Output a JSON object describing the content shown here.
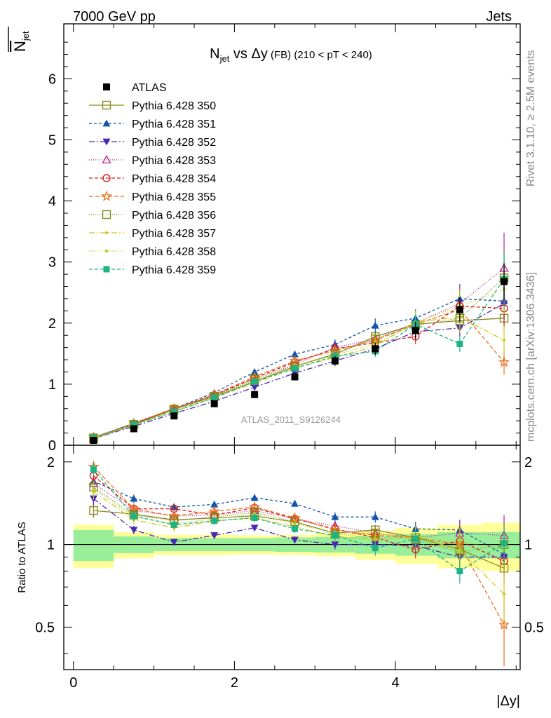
{
  "header": {
    "left": "7000 GeV pp",
    "right": "Jets"
  },
  "side_text": {
    "rivet": "Rivet 3.1.10, ≥ 2.5M events",
    "mcplots": "mcplots.cern.ch [arXiv:1306.3436]"
  },
  "watermark": "ATLAS_2011_S9126244",
  "chart_data": {
    "type": "line",
    "title": {
      "main": "N",
      "sub": "jet",
      "rest": " vs Δy",
      "small": " (FB) (210 < pT < 240)"
    },
    "ylabel": {
      "overline": "N",
      "sub": "jet"
    },
    "ratio_ylabel": "Ratio to ATLAS",
    "xlabel": "|Δy|",
    "xlim": [
      -0.12,
      5.55
    ],
    "ylim": [
      0,
      6.9
    ],
    "ratio_ylim": [
      0.35,
      2.3
    ],
    "x_ticks": [
      0,
      2,
      4
    ],
    "y_ticks": [
      0,
      1,
      2,
      3,
      4,
      5,
      6
    ],
    "ratio_ticks": [
      0.5,
      1,
      2
    ],
    "x": [
      0.25,
      0.75,
      1.25,
      1.75,
      2.25,
      2.75,
      3.25,
      3.75,
      4.25,
      4.8,
      5.35
    ],
    "data": {
      "name": "ATLAS",
      "color": "#000000",
      "values": [
        0.08,
        0.27,
        0.48,
        0.68,
        0.83,
        1.12,
        1.38,
        1.58,
        1.88,
        2.22,
        2.68
      ],
      "errors": [
        0.01,
        0.02,
        0.03,
        0.04,
        0.05,
        0.06,
        0.08,
        0.1,
        0.14,
        0.2,
        0.3
      ]
    },
    "ratio_band_inner": [
      0.13,
      0.07,
      0.055,
      0.055,
      0.055,
      0.06,
      0.065,
      0.075,
      0.09,
      0.11,
      0.11
    ],
    "ratio_band_outer": [
      0.18,
      0.11,
      0.085,
      0.085,
      0.08,
      0.085,
      0.095,
      0.12,
      0.15,
      0.18,
      0.2
    ],
    "series": [
      {
        "name": "Pythia 6.428 350",
        "color": "#8C8C1F",
        "marker": "square-open",
        "dash": "solid",
        "values": [
          0.105,
          0.34,
          0.59,
          0.8,
          1.04,
          1.29,
          1.49,
          1.78,
          1.98,
          2.04,
          2.08
        ],
        "ratio": [
          1.33,
          1.29,
          1.23,
          1.25,
          1.27,
          1.21,
          1.1,
          1.13,
          1.06,
          0.96,
          0.82
        ],
        "ratio_err": [
          0.08,
          0.04,
          0.03,
          0.03,
          0.03,
          0.03,
          0.04,
          0.05,
          0.06,
          0.08,
          0.07
        ]
      },
      {
        "name": "Pythia 6.428 351",
        "color": "#1354AC",
        "marker": "triangle-up",
        "dash": "4,3",
        "values": [
          0.125,
          0.36,
          0.6,
          0.86,
          1.2,
          1.49,
          1.65,
          1.96,
          2.08,
          2.4,
          2.36
        ],
        "ratio": [
          1.7,
          1.47,
          1.37,
          1.4,
          1.48,
          1.41,
          1.26,
          1.26,
          1.14,
          1.13,
          0.92
        ],
        "ratio_err": [
          0.1,
          0.05,
          0.04,
          0.04,
          0.04,
          0.04,
          0.05,
          0.06,
          0.07,
          0.1,
          0.12
        ]
      },
      {
        "name": "Pythia 6.428 352",
        "color": "#4A28B4",
        "marker": "triangle-down",
        "dash": "8,3,2,3",
        "values": [
          0.11,
          0.31,
          0.52,
          0.72,
          0.95,
          1.18,
          1.38,
          1.58,
          1.86,
          1.92,
          2.32
        ],
        "ratio": [
          1.47,
          1.13,
          1.02,
          1.08,
          1.15,
          1.04,
          1.0,
          1.0,
          0.99,
          0.9,
          0.9
        ],
        "ratio_err": [
          0.08,
          0.04,
          0.03,
          0.03,
          0.03,
          0.03,
          0.04,
          0.05,
          0.06,
          0.08,
          0.12
        ]
      },
      {
        "name": "Pythia 6.428 353",
        "color": "#B4238C",
        "marker": "triangle-open",
        "dash": "1,2",
        "values": [
          0.12,
          0.35,
          0.6,
          0.82,
          1.08,
          1.32,
          1.6,
          1.74,
          2.0,
          2.32,
          2.9
        ],
        "ratio": [
          1.67,
          1.33,
          1.27,
          1.28,
          1.33,
          1.24,
          1.17,
          1.1,
          1.06,
          1.1,
          1.08
        ],
        "ratio_err": [
          0.1,
          0.05,
          0.04,
          0.04,
          0.04,
          0.04,
          0.05,
          0.06,
          0.08,
          0.12,
          0.2
        ]
      },
      {
        "name": "Pythia 6.428 354",
        "color": "#DC1E1E",
        "marker": "circle-open",
        "dash": "5,3",
        "values": [
          0.125,
          0.35,
          0.6,
          0.82,
          1.1,
          1.36,
          1.58,
          1.68,
          1.78,
          2.28,
          2.24
        ],
        "ratio": [
          1.78,
          1.35,
          1.35,
          1.28,
          1.36,
          1.24,
          1.14,
          1.06,
          0.96,
          1.03,
          0.87
        ],
        "ratio_err": [
          0.1,
          0.05,
          0.04,
          0.04,
          0.04,
          0.04,
          0.05,
          0.06,
          0.07,
          0.12,
          0.15
        ]
      },
      {
        "name": "Pythia 6.428 355",
        "color": "#EE6E1E",
        "marker": "star-open",
        "dash": "6,3",
        "values": [
          0.13,
          0.36,
          0.6,
          0.83,
          1.12,
          1.38,
          1.55,
          1.72,
          1.98,
          2.22,
          1.36
        ],
        "ratio": [
          1.92,
          1.35,
          1.27,
          1.32,
          1.37,
          1.25,
          1.13,
          1.08,
          1.06,
          1.0,
          0.51
        ],
        "ratio_err": [
          0.1,
          0.05,
          0.04,
          0.04,
          0.04,
          0.04,
          0.05,
          0.07,
          0.09,
          0.15,
          0.15
        ]
      },
      {
        "name": "Pythia 6.428 356",
        "color": "#7D8C14",
        "marker": "square-open",
        "dash": "1,2",
        "values": [
          0.12,
          0.34,
          0.58,
          0.8,
          1.08,
          1.3,
          1.5,
          1.74,
          1.96,
          2.08,
          2.74
        ],
        "ratio": [
          1.62,
          1.28,
          1.22,
          1.26,
          1.31,
          1.21,
          1.09,
          1.1,
          1.04,
          0.94,
          1.0
        ],
        "ratio_err": [
          0.1,
          0.05,
          0.04,
          0.04,
          0.04,
          0.04,
          0.05,
          0.06,
          0.08,
          0.1,
          0.15
        ]
      },
      {
        "name": "Pythia 6.428 357",
        "color": "#D2C81E",
        "marker": "dot",
        "dash": "8,3,2,3",
        "values": [
          0.115,
          0.33,
          0.55,
          0.78,
          1.02,
          1.26,
          1.44,
          1.62,
          2.02,
          2.1,
          1.72
        ],
        "ratio": [
          1.56,
          1.23,
          1.15,
          1.22,
          1.25,
          1.16,
          1.07,
          1.04,
          1.08,
          0.95,
          0.66
        ],
        "ratio_err": [
          0.1,
          0.05,
          0.04,
          0.04,
          0.04,
          0.04,
          0.05,
          0.06,
          0.09,
          0.12,
          0.14
        ]
      },
      {
        "name": "Pythia 6.428 358",
        "color": "#A8D21E",
        "marker": "dot",
        "dash": "1,2",
        "values": [
          0.12,
          0.34,
          0.57,
          0.79,
          1.06,
          1.3,
          1.48,
          1.66,
          2.0,
          2.28,
          2.55
        ],
        "ratio": [
          1.6,
          1.26,
          1.19,
          1.24,
          1.29,
          1.19,
          1.1,
          1.05,
          1.06,
          1.03,
          0.95
        ],
        "ratio_err": [
          0.1,
          0.05,
          0.04,
          0.04,
          0.04,
          0.04,
          0.05,
          0.06,
          0.09,
          0.12,
          0.16
        ]
      },
      {
        "name": "Pythia 6.428 359",
        "color": "#1EB482",
        "marker": "square",
        "dash": "5,3",
        "values": [
          0.125,
          0.34,
          0.55,
          0.78,
          1.04,
          1.26,
          1.46,
          1.54,
          1.98,
          1.66,
          2.72
        ],
        "ratio": [
          1.88,
          1.27,
          1.18,
          1.22,
          1.25,
          1.14,
          1.08,
          0.97,
          1.05,
          0.8,
          1.01
        ],
        "ratio_err": [
          0.1,
          0.05,
          0.04,
          0.04,
          0.04,
          0.04,
          0.05,
          0.06,
          0.08,
          0.08,
          0.16
        ]
      }
    ]
  }
}
